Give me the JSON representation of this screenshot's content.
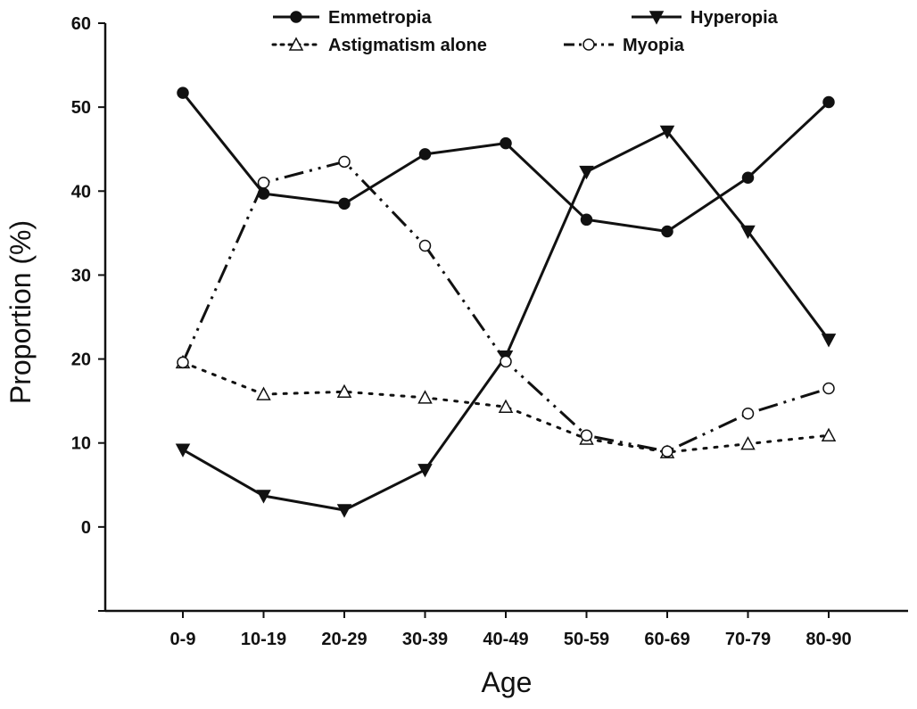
{
  "chart_data": {
    "type": "line",
    "title": "",
    "xlabel": "Age",
    "ylabel": "Proportion (%)",
    "categories": [
      "0-9",
      "10-19",
      "20-29",
      "30-39",
      "40-49",
      "50-59",
      "60-69",
      "70-79",
      "80-90"
    ],
    "yticks": [
      "0",
      "10",
      "20",
      "30",
      "40",
      "50",
      "60"
    ],
    "ylim": [
      -10,
      60
    ],
    "grid": false,
    "legend_position": "top",
    "series": [
      {
        "name": "Emmetropia",
        "marker": "filled-circle",
        "line": "solid",
        "values": [
          51.7,
          39.7,
          38.5,
          44.4,
          45.7,
          36.6,
          35.2,
          41.6,
          50.6
        ]
      },
      {
        "name": "Hyperopia",
        "marker": "filled-triangle-down",
        "line": "solid",
        "values": [
          9.2,
          3.7,
          2.0,
          6.8,
          20.3,
          42.3,
          47.1,
          35.2,
          22.3
        ]
      },
      {
        "name": "Astigmatism alone",
        "marker": "open-triangle-up",
        "line": "dotted",
        "values": [
          19.6,
          15.8,
          16.1,
          15.4,
          14.3,
          10.5,
          8.9,
          9.9,
          10.9
        ]
      },
      {
        "name": "Myopia",
        "marker": "open-circle",
        "line": "dash-dot-dot",
        "values": [
          19.6,
          41.0,
          43.5,
          33.5,
          19.7,
          10.9,
          9.0,
          13.5,
          16.5
        ]
      }
    ]
  }
}
